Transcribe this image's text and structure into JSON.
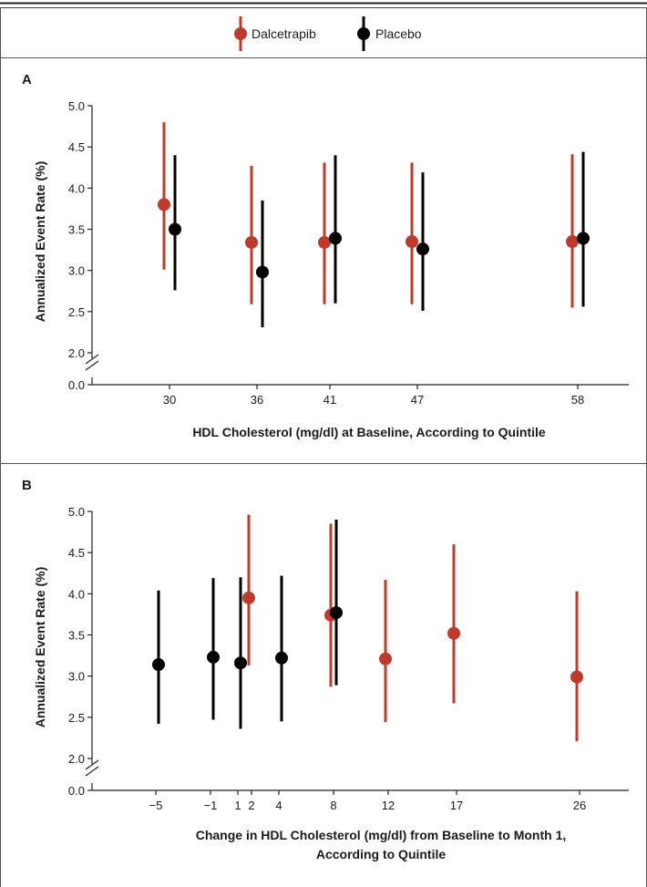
{
  "legend": [
    {
      "name": "Dalcetrapib",
      "color": "#c0392b"
    },
    {
      "name": "Placebo",
      "color": "#000000"
    }
  ],
  "chart_data": [
    {
      "panel": "A",
      "type": "scatter",
      "subtype": "point-with-error-bars",
      "xlabel": "HDL Cholesterol (mg/dl) at Baseline, According to Quintile",
      "ylabel": "Annualized Event Rate (%)",
      "ylim": [
        2.0,
        5.0
      ],
      "y_axis_break": true,
      "yticks": [
        "0.0",
        "2.0",
        "2.5",
        "3.0",
        "3.5",
        "4.0",
        "4.5",
        "5.0"
      ],
      "xlim": [
        25.5,
        61.5
      ],
      "xticks": [
        30,
        36,
        41,
        47,
        58
      ],
      "series": [
        {
          "name": "Dalcetrapib",
          "color": "#c0392b",
          "x": [
            30,
            36,
            41,
            47,
            58
          ],
          "y": [
            3.8,
            3.34,
            3.34,
            3.35,
            3.35
          ],
          "lower": [
            3.01,
            2.59,
            2.59,
            2.59,
            2.55
          ],
          "upper": [
            4.8,
            4.27,
            4.31,
            4.31,
            4.41
          ]
        },
        {
          "name": "Placebo",
          "color": "#000000",
          "x": [
            30,
            36,
            41,
            47,
            58
          ],
          "y": [
            3.5,
            2.98,
            3.39,
            3.26,
            3.39
          ],
          "lower": [
            2.76,
            2.31,
            2.6,
            2.51,
            2.56
          ],
          "upper": [
            4.4,
            3.85,
            4.4,
            4.19,
            4.44
          ]
        }
      ]
    },
    {
      "panel": "B",
      "type": "scatter",
      "subtype": "point-with-error-bars",
      "xlabel": "Change in HDL Cholesterol (mg/dl) from Baseline to Month 1, According to Quintile",
      "xlabel_lines": [
        "Change in HDL Cholesterol (mg/dl) from Baseline to Month 1,",
        "According to Quintile"
      ],
      "ylabel": "Annualized Event Rate (%)",
      "ylim": [
        2.0,
        5.0
      ],
      "y_axis_break": true,
      "yticks": [
        "0.0",
        "2.0",
        "2.5",
        "3.0",
        "3.5",
        "4.0",
        "4.5",
        "5.0"
      ],
      "xlim": [
        -8.8,
        29.6
      ],
      "xticks": [
        -5,
        -1,
        1,
        2,
        4,
        8,
        12,
        17,
        26
      ],
      "xtick_labels": [
        "−5",
        "−1",
        "1",
        "2",
        "4",
        "8",
        "12",
        "17",
        "26"
      ],
      "series": [
        {
          "name": "Dalcetrapib",
          "color": "#c0392b",
          "x": [
            2,
            8,
            12,
            17,
            26
          ],
          "y": [
            3.95,
            3.74,
            3.21,
            3.52,
            2.99
          ],
          "lower": [
            3.13,
            2.87,
            2.44,
            2.67,
            2.21
          ],
          "upper": [
            4.96,
            4.85,
            4.17,
            4.6,
            4.03
          ]
        },
        {
          "name": "Placebo",
          "color": "#000000",
          "x": [
            -5,
            -1,
            1,
            4,
            8
          ],
          "y": [
            3.14,
            3.23,
            3.16,
            3.22,
            3.77
          ],
          "lower": [
            2.42,
            2.47,
            2.36,
            2.45,
            2.89
          ],
          "upper": [
            4.04,
            4.19,
            4.2,
            4.22,
            4.9
          ]
        }
      ]
    }
  ]
}
